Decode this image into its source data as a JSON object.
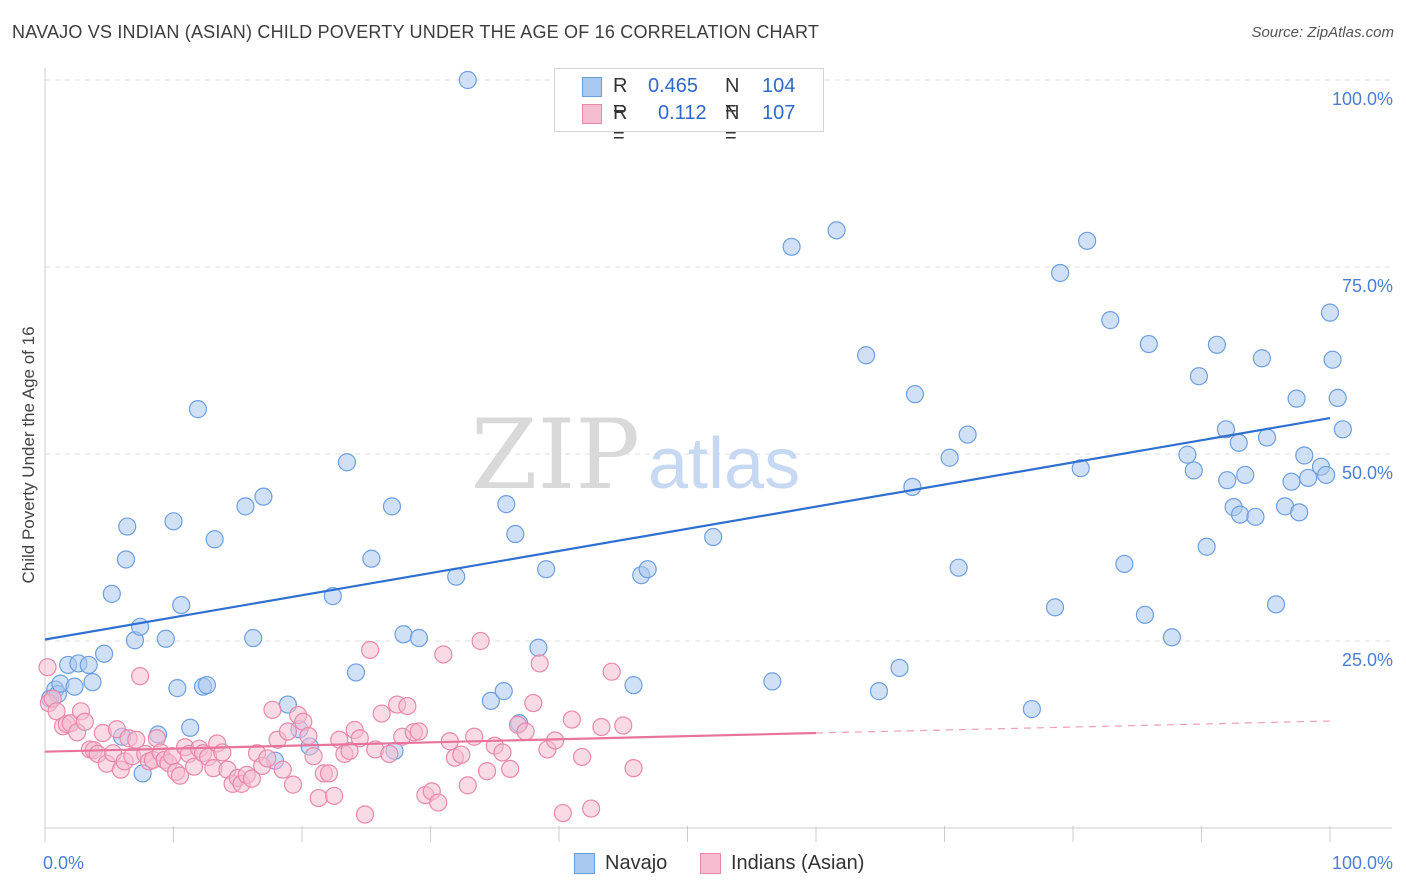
{
  "title": "NAVAJO VS INDIAN (ASIAN) CHILD POVERTY UNDER THE AGE OF 16 CORRELATION CHART",
  "source": "Source: ZipAtlas.com",
  "watermark": {
    "part1": "ZIP",
    "part2": "atlas"
  },
  "legend": {
    "rows": [
      {
        "r_label": "R =",
        "r_value": "0.465",
        "n_label": "N =",
        "n_value": "104",
        "color": "#a9c8f0",
        "stroke": "#6d9fe0"
      },
      {
        "r_label": "R =",
        "r_value": "0.112",
        "n_label": "N =",
        "n_value": "107",
        "color": "#f6bcd0",
        "stroke": "#e889ab"
      }
    ]
  },
  "bottom_legend": [
    {
      "label": "Navajo",
      "color": "#a9c8f0",
      "stroke": "#6d9fe0"
    },
    {
      "label": "Indians (Asian)",
      "color": "#f6bcd0",
      "stroke": "#e889ab"
    }
  ],
  "chart_data": {
    "type": "scatter",
    "title": "NAVAJO VS INDIAN (ASIAN) CHILD POVERTY UNDER THE AGE OF 16 CORRELATION CHART",
    "xlabel": "",
    "ylabel": "Child Poverty Under the Age of 16",
    "xlim": [
      0,
      100
    ],
    "ylim": [
      0,
      100
    ],
    "x_tick_labels": [
      "0.0%",
      "100.0%"
    ],
    "y_tick_labels": [
      "25.0%",
      "50.0%",
      "75.0%",
      "100.0%"
    ],
    "y_ticks": [
      25,
      50,
      75,
      100
    ],
    "x_minor_ticks": [
      0,
      10,
      20,
      30,
      40,
      50,
      60,
      70,
      80,
      90,
      100
    ],
    "grid": "horizontal dashed",
    "legend_position": "top-center",
    "series": [
      {
        "name": "Navajo",
        "color": "#a9c8f0",
        "stroke": "#6d9fe0",
        "trend": {
          "x": [
            0,
            100
          ],
          "y": [
            25.2,
            54.8
          ],
          "color": "#2f6fd0",
          "dashed_from": null
        },
        "points": [
          [
            0.4,
            17.3
          ],
          [
            0.8,
            18.5
          ],
          [
            1.0,
            17.9
          ],
          [
            1.2,
            19.3
          ],
          [
            1.8,
            21.8
          ],
          [
            2.3,
            18.9
          ],
          [
            2.6,
            22.0
          ],
          [
            3.4,
            21.8
          ],
          [
            3.7,
            19.5
          ],
          [
            4.6,
            23.3
          ],
          [
            5.2,
            31.3
          ],
          [
            6.0,
            12.2
          ],
          [
            6.3,
            35.9
          ],
          [
            6.4,
            40.3
          ],
          [
            7.0,
            25.1
          ],
          [
            7.4,
            26.9
          ],
          [
            7.6,
            7.3
          ],
          [
            8.8,
            12.5
          ],
          [
            9.4,
            25.3
          ],
          [
            10.0,
            41.0
          ],
          [
            10.3,
            18.7
          ],
          [
            10.6,
            29.8
          ],
          [
            11.3,
            13.4
          ],
          [
            11.9,
            56.0
          ],
          [
            12.3,
            18.9
          ],
          [
            12.6,
            19.1
          ],
          [
            13.2,
            38.6
          ],
          [
            15.6,
            43.0
          ],
          [
            16.2,
            25.4
          ],
          [
            17.0,
            44.3
          ],
          [
            17.9,
            9.0
          ],
          [
            18.9,
            16.5
          ],
          [
            19.8,
            13.2
          ],
          [
            20.6,
            10.9
          ],
          [
            22.4,
            31.0
          ],
          [
            23.5,
            48.9
          ],
          [
            24.2,
            20.8
          ],
          [
            25.4,
            36.0
          ],
          [
            27.0,
            43.0
          ],
          [
            27.2,
            10.3
          ],
          [
            27.9,
            25.9
          ],
          [
            29.1,
            25.4
          ],
          [
            32.0,
            33.6
          ],
          [
            32.9,
            100.0
          ],
          [
            34.7,
            17.0
          ],
          [
            35.7,
            18.3
          ],
          [
            35.9,
            43.3
          ],
          [
            36.6,
            39.3
          ],
          [
            36.9,
            14.0
          ],
          [
            38.4,
            24.1
          ],
          [
            39.0,
            34.6
          ],
          [
            41.3,
            100.0
          ],
          [
            45.8,
            19.1
          ],
          [
            46.4,
            33.8
          ],
          [
            46.9,
            34.6
          ],
          [
            52.0,
            38.9
          ],
          [
            56.6,
            19.6
          ],
          [
            58.1,
            77.7
          ],
          [
            61.6,
            79.9
          ],
          [
            63.9,
            63.2
          ],
          [
            64.9,
            18.3
          ],
          [
            66.5,
            21.4
          ],
          [
            67.5,
            45.6
          ],
          [
            67.7,
            58.0
          ],
          [
            70.4,
            49.5
          ],
          [
            71.1,
            34.8
          ],
          [
            71.8,
            52.6
          ],
          [
            76.8,
            15.9
          ],
          [
            78.6,
            29.5
          ],
          [
            79.0,
            74.2
          ],
          [
            80.6,
            48.1
          ],
          [
            81.1,
            78.5
          ],
          [
            82.9,
            67.9
          ],
          [
            84.0,
            35.3
          ],
          [
            85.6,
            28.5
          ],
          [
            85.9,
            64.7
          ],
          [
            87.7,
            25.5
          ],
          [
            88.9,
            49.9
          ],
          [
            89.4,
            47.8
          ],
          [
            89.8,
            60.4
          ],
          [
            90.4,
            37.6
          ],
          [
            91.2,
            64.6
          ],
          [
            91.9,
            53.3
          ],
          [
            92.0,
            46.5
          ],
          [
            92.5,
            42.9
          ],
          [
            92.9,
            51.5
          ],
          [
            93.0,
            41.9
          ],
          [
            93.4,
            47.2
          ],
          [
            94.2,
            41.6
          ],
          [
            94.7,
            62.8
          ],
          [
            95.1,
            52.2
          ],
          [
            95.8,
            29.9
          ],
          [
            96.5,
            43.0
          ],
          [
            97.0,
            46.3
          ],
          [
            97.4,
            57.4
          ],
          [
            97.6,
            42.2
          ],
          [
            98.0,
            49.8
          ],
          [
            98.3,
            46.8
          ],
          [
            99.3,
            48.3
          ],
          [
            99.7,
            47.2
          ],
          [
            100.0,
            68.9
          ],
          [
            100.2,
            62.6
          ],
          [
            100.6,
            57.5
          ],
          [
            101.0,
            53.3
          ]
        ]
      },
      {
        "name": "Indians (Asian)",
        "color": "#f6bcd0",
        "stroke": "#e889ab",
        "trend": {
          "x": [
            0,
            60,
            100
          ],
          "y": [
            10.2,
            12.7,
            14.3
          ],
          "color": "#e8739b",
          "dashed_from": 60
        },
        "points": [
          [
            0.2,
            21.5
          ],
          [
            0.3,
            16.7
          ],
          [
            0.6,
            17.3
          ],
          [
            0.9,
            15.6
          ],
          [
            1.4,
            13.6
          ],
          [
            1.7,
            13.9
          ],
          [
            2.0,
            14.0
          ],
          [
            2.5,
            12.8
          ],
          [
            2.8,
            15.6
          ],
          [
            3.1,
            14.2
          ],
          [
            3.5,
            10.5
          ],
          [
            3.8,
            10.4
          ],
          [
            4.1,
            9.9
          ],
          [
            4.5,
            12.7
          ],
          [
            4.8,
            8.6
          ],
          [
            5.3,
            10.0
          ],
          [
            5.6,
            13.2
          ],
          [
            5.9,
            7.8
          ],
          [
            6.2,
            8.9
          ],
          [
            6.5,
            12.0
          ],
          [
            6.8,
            9.6
          ],
          [
            7.1,
            11.8
          ],
          [
            7.4,
            20.3
          ],
          [
            7.8,
            9.9
          ],
          [
            8.1,
            8.9
          ],
          [
            8.4,
            9.1
          ],
          [
            8.7,
            12.0
          ],
          [
            9.0,
            10.1
          ],
          [
            9.3,
            9.1
          ],
          [
            9.6,
            8.7
          ],
          [
            9.9,
            9.6
          ],
          [
            10.2,
            7.5
          ],
          [
            10.5,
            7.0
          ],
          [
            10.9,
            10.8
          ],
          [
            11.2,
            9.9
          ],
          [
            11.6,
            8.2
          ],
          [
            12.0,
            10.6
          ],
          [
            12.3,
            10.0
          ],
          [
            12.7,
            9.5
          ],
          [
            13.1,
            8.0
          ],
          [
            13.4,
            11.3
          ],
          [
            13.8,
            10.1
          ],
          [
            14.2,
            7.8
          ],
          [
            14.6,
            5.9
          ],
          [
            15.0,
            6.7
          ],
          [
            15.3,
            5.9
          ],
          [
            15.7,
            7.1
          ],
          [
            16.1,
            6.6
          ],
          [
            16.5,
            10.0
          ],
          [
            16.9,
            8.3
          ],
          [
            17.3,
            9.3
          ],
          [
            17.7,
            15.8
          ],
          [
            18.1,
            11.8
          ],
          [
            18.5,
            7.8
          ],
          [
            18.9,
            12.9
          ],
          [
            19.3,
            5.8
          ],
          [
            19.7,
            15.1
          ],
          [
            20.1,
            14.2
          ],
          [
            20.5,
            12.3
          ],
          [
            20.9,
            9.6
          ],
          [
            21.3,
            4.0
          ],
          [
            21.7,
            7.3
          ],
          [
            22.1,
            7.3
          ],
          [
            22.5,
            4.3
          ],
          [
            22.9,
            11.8
          ],
          [
            23.3,
            9.9
          ],
          [
            23.7,
            10.3
          ],
          [
            24.1,
            13.1
          ],
          [
            24.5,
            12.0
          ],
          [
            24.9,
            1.8
          ],
          [
            25.3,
            23.8
          ],
          [
            25.7,
            10.5
          ],
          [
            26.2,
            15.3
          ],
          [
            26.8,
            9.9
          ],
          [
            27.4,
            16.5
          ],
          [
            27.8,
            12.2
          ],
          [
            28.2,
            16.3
          ],
          [
            28.7,
            12.8
          ],
          [
            29.1,
            12.9
          ],
          [
            29.6,
            4.4
          ],
          [
            30.1,
            4.9
          ],
          [
            30.6,
            3.4
          ],
          [
            31.0,
            23.2
          ],
          [
            31.5,
            11.6
          ],
          [
            31.9,
            9.4
          ],
          [
            32.4,
            9.8
          ],
          [
            32.9,
            5.7
          ],
          [
            33.4,
            12.2
          ],
          [
            33.9,
            25.0
          ],
          [
            34.4,
            7.6
          ],
          [
            35.0,
            11.0
          ],
          [
            35.6,
            10.1
          ],
          [
            36.2,
            7.9
          ],
          [
            36.8,
            13.8
          ],
          [
            37.4,
            12.9
          ],
          [
            38.0,
            16.7
          ],
          [
            38.5,
            22.0
          ],
          [
            39.1,
            10.5
          ],
          [
            39.7,
            11.7
          ],
          [
            40.3,
            2.0
          ],
          [
            41.0,
            14.5
          ],
          [
            41.8,
            9.5
          ],
          [
            42.5,
            2.6
          ],
          [
            43.3,
            13.5
          ],
          [
            44.1,
            20.9
          ],
          [
            45.0,
            13.7
          ],
          [
            45.8,
            8.0
          ]
        ]
      }
    ]
  }
}
